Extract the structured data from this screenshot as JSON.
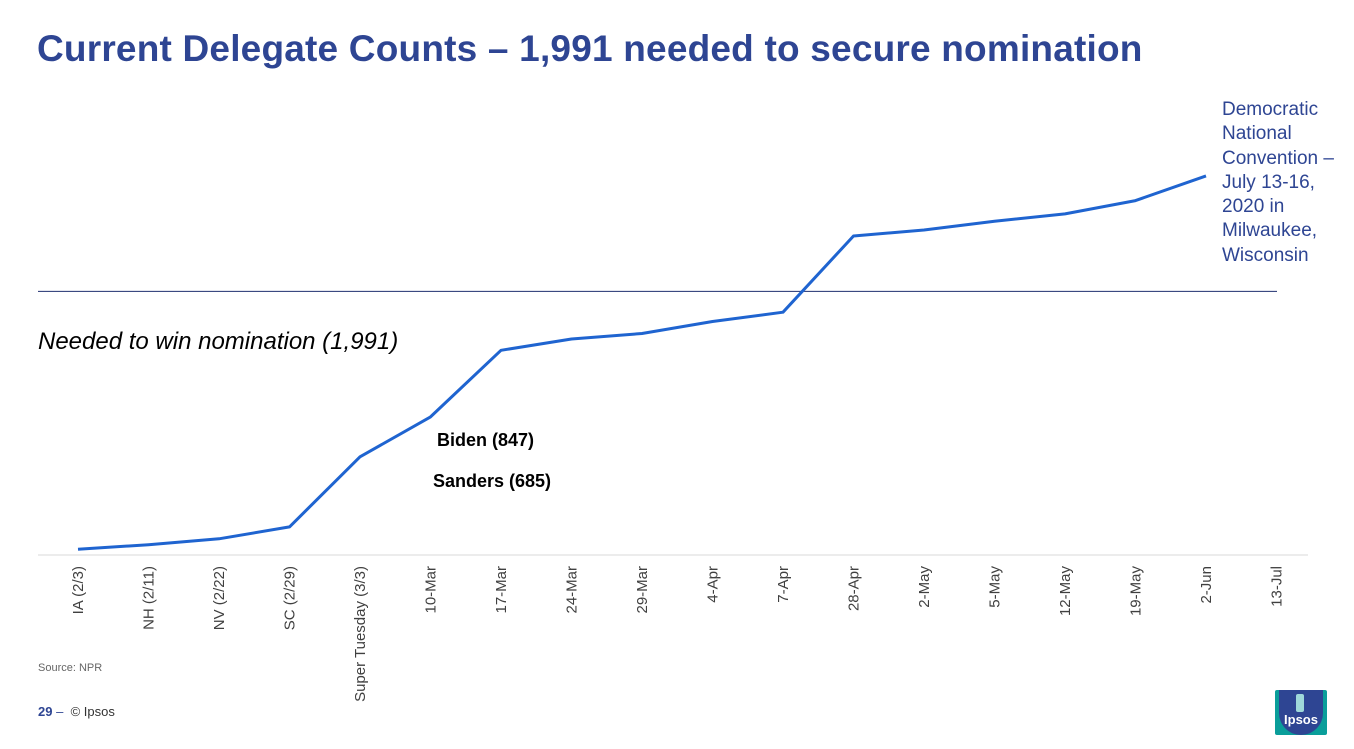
{
  "title": "Current Delegate Counts – 1,991 needed to secure nomination",
  "threshold_label": "Needed to win nomination (1,991)",
  "annotations": {
    "biden": "Biden (847)",
    "sanders": "Sanders (685)",
    "convention": "Democratic National Convention – July 13-16, 2020 in Milwaukee, Wisconsin"
  },
  "source": "Source: NPR",
  "footer": {
    "page": "29",
    "separator": "–",
    "copyright": "© Ipsos"
  },
  "logo_text": "Ipsos",
  "colors": {
    "title": "#2E4593",
    "line": "#1F64D0",
    "threshold": "#1F2F6F",
    "axis": "#D9D9D9"
  },
  "chart_data": {
    "type": "line",
    "categories": [
      "IA (2/3)",
      "NH (2/11)",
      "NV (2/22)",
      "SC (2/29)",
      "Super Tuesday (3/3)",
      "10-Mar",
      "17-Mar",
      "24-Mar",
      "29-Mar",
      "4-Apr",
      "7-Apr",
      "28-Apr",
      "2-May",
      "5-May",
      "12-May",
      "19-May",
      "2-Jun",
      "13-Jul"
    ],
    "series": [
      {
        "values": [
          21,
          56,
          101,
          192,
          727,
          1032,
          1541,
          1627,
          1669,
          1761,
          1832,
          2414,
          2460,
          2527,
          2583,
          2684,
          2873,
          null
        ]
      }
    ],
    "threshold": 1991,
    "ylim": [
      0,
      3850
    ],
    "grid": false,
    "legend": "none"
  }
}
